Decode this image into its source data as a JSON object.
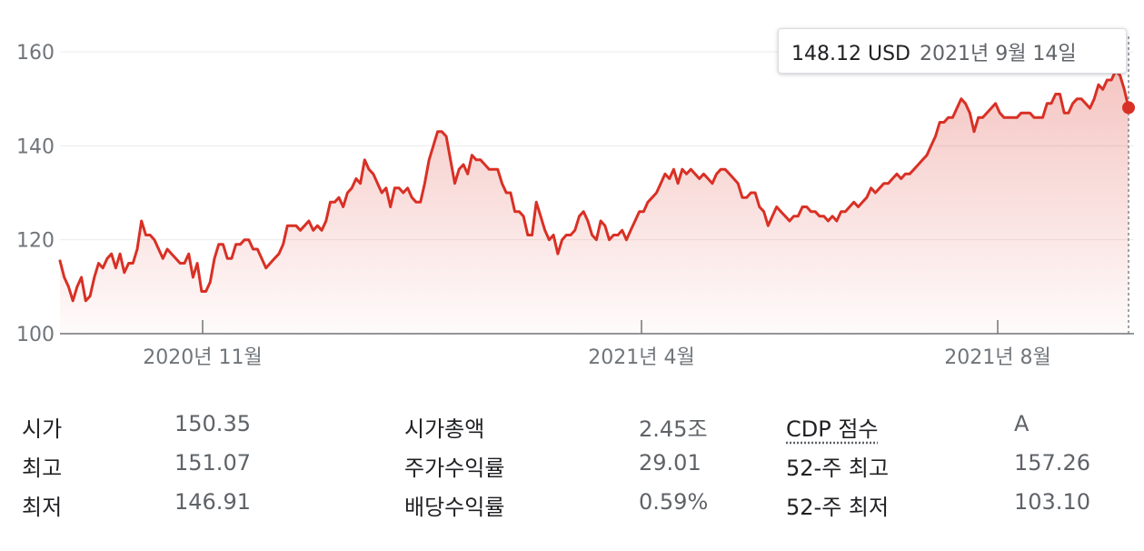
{
  "tooltip": {
    "price": "148.12 USD",
    "date": "2021년 9월 14일"
  },
  "chart_data": {
    "type": "area",
    "ylim": [
      100,
      160
    ],
    "y_ticks": [
      100,
      120,
      140,
      160
    ],
    "x_ticks": [
      "2020년 11월",
      "2021년 4월",
      "2021년 8월"
    ],
    "grid": true,
    "series": [
      {
        "color": "#d93025",
        "values": [
          115.5,
          112,
          110,
          107,
          110,
          112,
          107,
          108,
          112,
          115,
          114,
          116,
          117,
          114,
          117,
          113,
          115,
          115,
          118,
          124,
          121,
          121,
          120,
          118,
          116,
          118,
          117,
          116,
          115,
          115,
          117,
          112,
          115,
          109,
          109,
          111,
          116,
          119,
          119,
          116,
          116,
          119,
          119,
          120,
          120,
          118,
          118,
          116,
          114,
          115,
          116,
          117,
          119,
          123,
          123,
          123,
          122,
          123,
          124,
          122,
          123,
          122,
          124,
          128,
          128,
          129,
          127,
          130,
          131,
          133,
          132,
          137,
          135,
          134,
          132,
          130,
          131,
          127,
          131,
          131,
          130,
          131,
          129,
          128,
          128,
          132,
          137,
          140,
          143,
          143,
          142,
          137,
          132,
          135,
          136,
          134,
          138,
          137,
          137,
          136,
          135,
          135,
          135,
          132,
          130,
          130,
          126,
          126,
          125,
          121,
          121,
          128,
          125,
          122,
          120,
          121,
          117,
          120,
          121,
          121,
          122,
          125,
          126,
          124,
          121,
          120,
          124,
          123,
          120,
          121,
          121,
          122,
          120,
          122,
          124,
          126,
          126,
          128,
          129,
          130,
          132,
          134,
          133,
          135,
          132,
          135,
          134,
          135,
          134,
          133,
          134,
          133,
          132,
          134,
          135,
          135,
          134,
          133,
          132,
          129,
          129,
          130,
          130,
          127,
          126,
          123,
          125,
          127,
          126,
          125,
          124,
          125,
          125,
          127,
          127,
          126,
          126,
          125,
          125,
          124,
          125,
          124,
          126,
          126,
          127,
          128,
          127,
          128,
          129,
          131,
          130,
          131,
          132,
          132,
          133,
          134,
          133,
          134,
          134,
          135,
          136,
          137,
          138,
          140,
          142,
          145,
          145,
          146,
          146,
          148,
          150,
          149,
          147,
          143,
          146,
          146,
          147,
          148,
          149,
          147,
          146,
          146,
          146,
          146,
          147,
          147,
          147,
          146,
          146,
          146,
          149,
          149,
          151,
          151,
          147,
          147,
          149,
          150,
          150,
          149,
          148,
          150,
          153,
          152,
          154,
          154,
          156,
          155,
          152,
          148.12
        ]
      }
    ]
  },
  "stats": {
    "col1": [
      {
        "label": "시가",
        "value": "150.35"
      },
      {
        "label": "최고",
        "value": "151.07"
      },
      {
        "label": "최저",
        "value": "146.91"
      }
    ],
    "col2": [
      {
        "label": "시가총액",
        "value": "2.45조"
      },
      {
        "label": "주가수익률",
        "value": "29.01"
      },
      {
        "label": "배당수익률",
        "value": "0.59%"
      }
    ],
    "col3": [
      {
        "label": "CDP 점수",
        "value": "A"
      },
      {
        "label": "52-주 최고",
        "value": "157.26"
      },
      {
        "label": "52-주 최저",
        "value": "103.10"
      }
    ]
  }
}
